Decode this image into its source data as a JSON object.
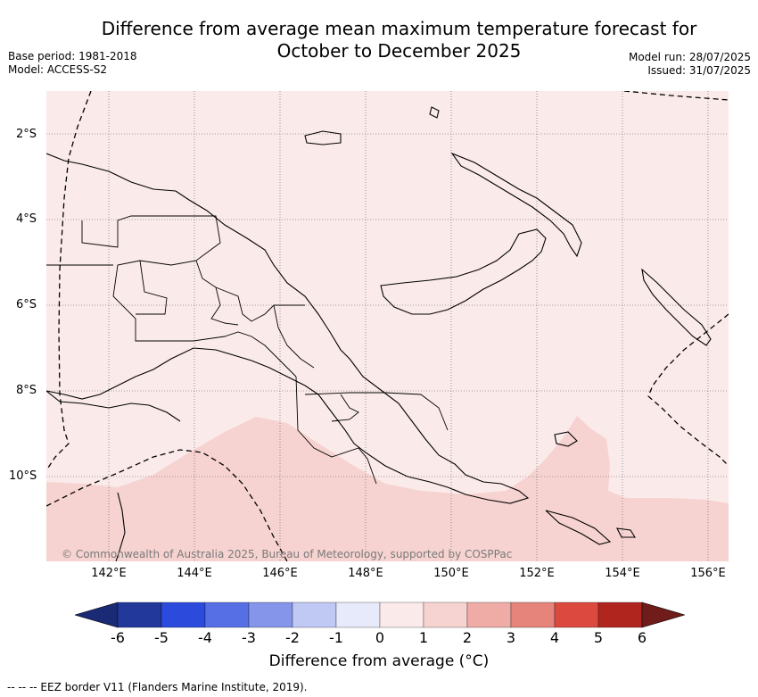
{
  "title": {
    "line1": "Difference from average mean maximum temperature forecast for",
    "line2": "October to December 2025"
  },
  "meta_left": {
    "base_period": "Base period: 1981-2018",
    "model": "Model: ACCESS-S2"
  },
  "meta_right": {
    "model_run": "Model run: 28/07/2025",
    "issued": "Issued: 31/07/2025"
  },
  "lat_labels": [
    "2°S",
    "4°S",
    "6°S",
    "8°S",
    "10°S"
  ],
  "lon_labels": [
    "142°E",
    "144°E",
    "146°E",
    "148°E",
    "150°E",
    "152°E",
    "154°E",
    "156°E"
  ],
  "copyright": "© Commonwealth of Australia 2025, Bureau of Meteorology, supported by COSPPac",
  "colorbar": {
    "ticks": [
      "-6",
      "-5",
      "-4",
      "-3",
      "-2",
      "-1",
      "0",
      "1",
      "2",
      "3",
      "4",
      "5",
      "6"
    ],
    "colors": [
      "#22389a",
      "#2c4bdc",
      "#566fe4",
      "#8495ea",
      "#c0c8f4",
      "#e6eafa",
      "#fbeaea",
      "#f6d3d0",
      "#efaca6",
      "#e6837b",
      "#dc4a3f",
      "#b0261f"
    ],
    "end_low": "#1a2a75",
    "end_high": "#701c1a",
    "label": "Difference from average (°C)"
  },
  "map_colors": {
    "land_band": "#fbeaea",
    "south_band": "#f6d3d0"
  },
  "legend_note": "--  --  -- EEZ border V11 (Flanders Marine Institute, 2019)."
}
